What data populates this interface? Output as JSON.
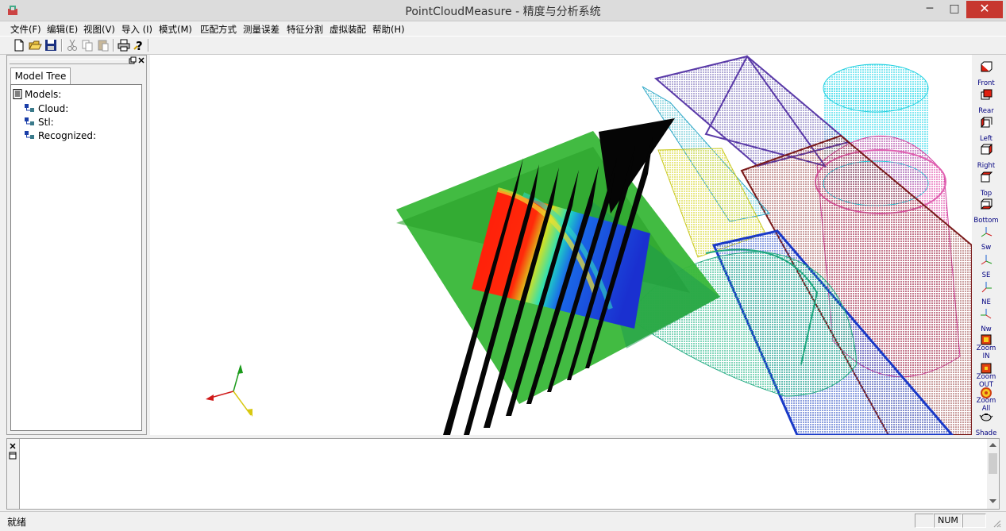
{
  "window": {
    "title": "PointCloudMeasure - 精度与分析系统",
    "close_glyph": "✕",
    "minimize_glyph": "─",
    "maximize_glyph": "□"
  },
  "menu": [
    {
      "label": "文件(F)"
    },
    {
      "label": "编辑(E)"
    },
    {
      "label": "视图(V)"
    },
    {
      "label": "导入 (I)"
    },
    {
      "label": "模式(M)"
    },
    {
      "label": "匹配方式"
    },
    {
      "label": "测量误差"
    },
    {
      "label": "特征分割"
    },
    {
      "label": "虚拟装配"
    },
    {
      "label": "帮助(H)"
    }
  ],
  "toolbar": [
    "new-icon",
    "open-icon",
    "save-icon",
    "cut-icon",
    "copy-icon",
    "paste-icon",
    "print-icon",
    "help-icon"
  ],
  "left_panel": {
    "tab_label": "Model Tree",
    "tree": [
      {
        "label": "Models:"
      },
      {
        "label": "Cloud:"
      },
      {
        "label": "Stl:"
      },
      {
        "label": "Recognized:"
      }
    ]
  },
  "view_buttons": [
    {
      "label": "Front"
    },
    {
      "label": "Rear"
    },
    {
      "label": "Left"
    },
    {
      "label": "Right"
    },
    {
      "label": "Top"
    },
    {
      "label": "Bottom"
    },
    {
      "label": "Sw"
    },
    {
      "label": "SE"
    },
    {
      "label": "NE"
    },
    {
      "label": "Nw"
    },
    {
      "label": "Zoom IN"
    },
    {
      "label": "Zoom OUT"
    },
    {
      "label": "Zoom All"
    },
    {
      "label": "Shade"
    }
  ],
  "status": {
    "text": "就绪",
    "num": "NUM"
  },
  "colors": {
    "accent_close": "#c7372f",
    "tree_icon": "#1a3ea8"
  }
}
